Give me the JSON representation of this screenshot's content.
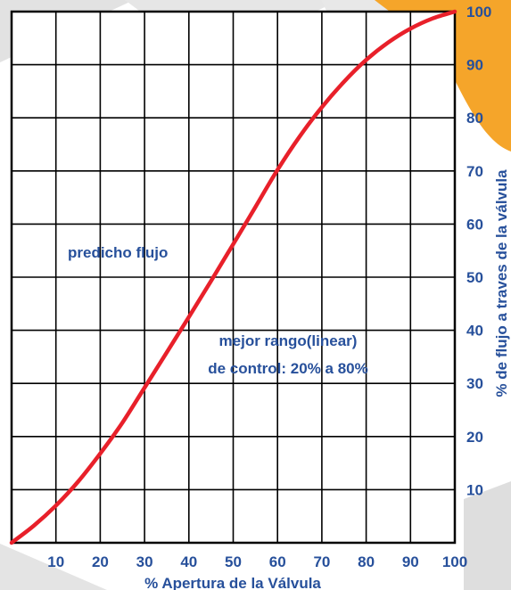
{
  "chart_data": {
    "type": "line",
    "xlabel": "% Apertura de la Válvula",
    "ylabel": "% de flujo a traves de la válvula",
    "xlim": [
      0,
      100
    ],
    "ylim": [
      0,
      100
    ],
    "x_ticks": [
      "10",
      "20",
      "30",
      "40",
      "50",
      "60",
      "70",
      "80",
      "90",
      "100"
    ],
    "y_ticks": [
      "10",
      "20",
      "30",
      "40",
      "50",
      "60",
      "70",
      "80",
      "90",
      "100"
    ],
    "grid": true,
    "annotations": [
      {
        "text": "predicho flujo"
      },
      {
        "text": "mejor rango(linear)"
      },
      {
        "text": "de control: 20% a 80%"
      }
    ],
    "series": [
      {
        "color": "#e8202a",
        "points": [
          [
            0,
            0
          ],
          [
            5,
            3.2
          ],
          [
            10,
            7
          ],
          [
            15,
            11.5
          ],
          [
            20,
            16.8
          ],
          [
            25,
            22.6
          ],
          [
            30,
            29.2
          ],
          [
            35,
            35.8
          ],
          [
            40,
            42.5
          ],
          [
            45,
            49.3
          ],
          [
            50,
            56.2
          ],
          [
            55,
            63.2
          ],
          [
            60,
            70.2
          ],
          [
            65,
            76.5
          ],
          [
            70,
            82
          ],
          [
            75,
            86.8
          ],
          [
            80,
            90.9
          ],
          [
            85,
            94.2
          ],
          [
            90,
            96.8
          ],
          [
            95,
            98.7
          ],
          [
            100,
            100
          ]
        ]
      }
    ]
  },
  "colors": {
    "text_blue": "#27509b",
    "curve_red": "#e8202a",
    "grid_black": "#000000",
    "background_gray": "#dcdcdc",
    "accent_orange": "#f5a52a"
  }
}
